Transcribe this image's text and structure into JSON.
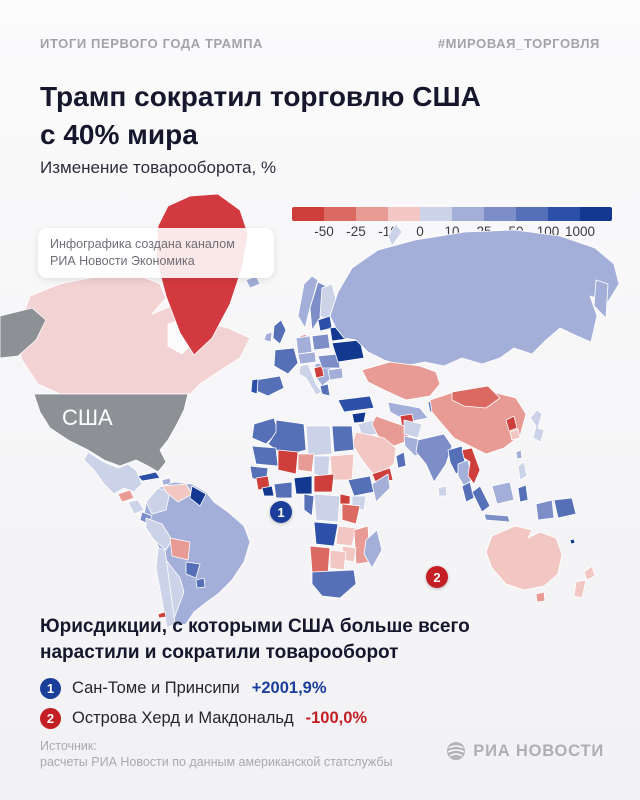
{
  "header": {
    "left": "ИТОГИ ПЕРВОГО ГОДА ТРАМПА",
    "right": "#МИРОВАЯ_ТОРГОВЛЯ"
  },
  "title": {
    "line1": "Трамп сократил торговлю США",
    "line2": "с 40% мира"
  },
  "subtitle": "Изменение товарооборота, %",
  "badge": {
    "line1": "Инфографика создана каналом",
    "line2": "РИА Новости Экономика"
  },
  "legend": {
    "stops": [
      "-50",
      "-25",
      "-10",
      "0",
      "10",
      "25",
      "50",
      "100",
      "1000"
    ],
    "colors": [
      "#ce3e3b",
      "#db6a63",
      "#e89a94",
      "#f2c6c3",
      "#ccd3e8",
      "#a3afd9",
      "#7c8dc7",
      "#5670b8",
      "#2c50a8",
      "#12398f"
    ]
  },
  "map": {
    "usa_label": "США",
    "marker1": "1",
    "marker2": "2",
    "colors": {
      "usa_gray": "#8d9196",
      "canada_pink": "#f3d2d3",
      "greenland_red": "#d23a40",
      "marker_blue": "#1b3e9b",
      "marker_red": "#c41e25"
    }
  },
  "bottom": {
    "heading_line1": "Юрисдикции, с которыми США больше всего",
    "heading_line2": "нарастили и сократили товарооборот",
    "items": [
      {
        "num": "1",
        "label": "Сан-Томе и Принсипи",
        "value": "+2001,9%",
        "color": "#1b3e9b"
      },
      {
        "num": "2",
        "label": "Острова Херд и Макдональд",
        "value": "-100,0%",
        "color": "#c41e25"
      }
    ]
  },
  "footer": {
    "source_line1": "Источник:",
    "source_line2": "расчеты РИА Новости по данным американской статслужбы",
    "logo_text": "РИА НОВОСТИ"
  },
  "chart_data": {
    "type": "choropleth (heatmap on world map)",
    "title": "Трамп сократил торговлю США с 40% мира",
    "metric": "Изменение товарооборота, %",
    "scale_stops": [
      -50,
      -25,
      -10,
      0,
      10,
      25,
      50,
      100,
      1000
    ],
    "scale_colors": [
      "#ce3e3b",
      "#db6a63",
      "#e89a94",
      "#f2c6c3",
      "#ccd3e8",
      "#a3afd9",
      "#7c8dc7",
      "#5670b8",
      "#2c50a8",
      "#12398f"
    ],
    "base_country": "США (выделена серым, подписана на карте)",
    "highlights": [
      {
        "rank": 1,
        "marker_color": "#1b3e9b",
        "name": "Сан-Томе и Принсипи",
        "change_pct": "+2001,9%"
      },
      {
        "rank": 2,
        "marker_color": "#c41e25",
        "name": "Острова Херд и Макдональд",
        "change_pct": "-100,0%"
      }
    ],
    "regions_read_from_map": [
      {
        "name": "Гренландия",
        "bucket": "ниже -50"
      },
      {
        "name": "Канада",
        "bucket": "-10…0"
      },
      {
        "name": "Мексика",
        "bucket": "0…10"
      },
      {
        "name": "Бразилия",
        "bucket": "10…25"
      },
      {
        "name": "Аргентина",
        "bucket": "0…10"
      },
      {
        "name": "Венесуэла",
        "bucket": "-10…0"
      },
      {
        "name": "Россия",
        "bucket": "10…25"
      },
      {
        "name": "Украина",
        "bucket": "выше 1000"
      },
      {
        "name": "Белоруссия",
        "bucket": "выше 1000"
      },
      {
        "name": "Казахстан",
        "bucket": "-25…-10"
      },
      {
        "name": "Китай",
        "bucket": "-25…-10"
      },
      {
        "name": "Монголия",
        "bucket": "-50…-25"
      },
      {
        "name": "КНДР",
        "bucket": "ниже -50"
      },
      {
        "name": "Япония",
        "bucket": "0…10"
      },
      {
        "name": "Индия",
        "bucket": "25…50"
      },
      {
        "name": "Иран",
        "bucket": "-25…-10"
      },
      {
        "name": "Турция",
        "bucket": "100…1000"
      },
      {
        "name": "Саудовская Аравия",
        "bucket": "-10…0"
      },
      {
        "name": "Австралия",
        "bucket": "-10…0"
      },
      {
        "name": "Новая Зеландия",
        "bucket": "-10…0"
      },
      {
        "name": "ЮАР",
        "bucket": "50…100"
      },
      {
        "name": "Нигерия",
        "bucket": "выше 1000"
      },
      {
        "name": "Мали",
        "bucket": "ниже -50"
      },
      {
        "name": "Ангола",
        "bucket": "100…1000"
      }
    ],
    "legend_position": "top-right",
    "grid": false
  }
}
